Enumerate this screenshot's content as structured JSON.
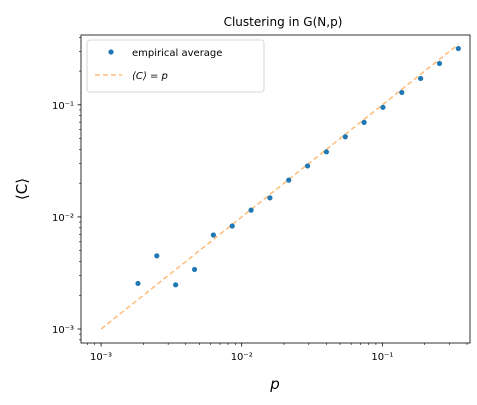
{
  "chart_data": {
    "type": "scatter",
    "title": "Clustering in G(N,p)",
    "xlabel": "p",
    "ylabel": "⟨C⟩",
    "xscale": "log",
    "yscale": "log",
    "xlim": [
      0.00072,
      0.42
    ],
    "ylim": [
      0.00075,
      0.42
    ],
    "x_ticks": [
      {
        "value": 0.001,
        "label": "10⁻³"
      },
      {
        "value": 0.01,
        "label": "10⁻²"
      },
      {
        "value": 0.1,
        "label": "10⁻¹"
      }
    ],
    "y_ticks": [
      {
        "value": 0.001,
        "label": "10⁻³"
      },
      {
        "value": 0.01,
        "label": "10⁻²"
      },
      {
        "value": 0.1,
        "label": "10⁻¹"
      }
    ],
    "legend_position": "top-left",
    "series": [
      {
        "name": "empirical average",
        "style": "markers",
        "color": "#1f77b4",
        "x": [
          0.00183,
          0.00249,
          0.00339,
          0.00462,
          0.00629,
          0.00856,
          0.01166,
          0.01587,
          0.0216,
          0.0294,
          0.04003,
          0.0545,
          0.0742,
          0.101,
          0.1375,
          0.1872,
          0.2548,
          0.3469
        ],
        "y": [
          0.00255,
          0.0045,
          0.00248,
          0.0034,
          0.0069,
          0.0083,
          0.0115,
          0.0148,
          0.0213,
          0.0285,
          0.0381,
          0.0519,
          0.0698,
          0.095,
          0.129,
          0.172,
          0.234,
          0.318
        ]
      },
      {
        "name": "⟨C⟩ = p",
        "style": "dashed-line",
        "color": "#ffbb78",
        "x": [
          0.001,
          0.3469
        ],
        "y": [
          0.001,
          0.3469
        ]
      }
    ]
  }
}
